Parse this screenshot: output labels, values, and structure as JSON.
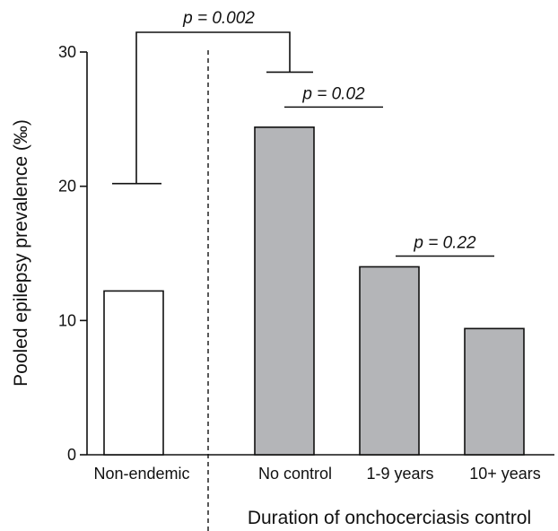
{
  "chart_data": {
    "type": "bar",
    "title": "",
    "xlabel": "Duration of onchocerciasis control",
    "ylabel": "Pooled epilepsy prevalence (‰)",
    "ylim": [
      0,
      30
    ],
    "yticks": [
      0,
      10,
      20,
      30
    ],
    "categories": [
      "Non-endemic",
      "No control",
      "1-9 years",
      "10+ years"
    ],
    "values": [
      12.2,
      24.4,
      14.0,
      9.4
    ],
    "bar_colors": [
      "#ffffff",
      "#b4b5b8",
      "#b4b5b8",
      "#b4b5b8"
    ],
    "edge_color": "#111111",
    "separator_after_category": 0,
    "grid": false,
    "annotations": [
      {
        "label": "p = 0.002",
        "compares": [
          "Non-endemic",
          "No control"
        ],
        "type": "bracket"
      },
      {
        "label": "p = 0.02",
        "compares": [
          "No control",
          "1-9 years"
        ],
        "type": "line"
      },
      {
        "label": "p = 0.22",
        "compares": [
          "1-9 years",
          "10+ years"
        ],
        "type": "line"
      }
    ]
  }
}
